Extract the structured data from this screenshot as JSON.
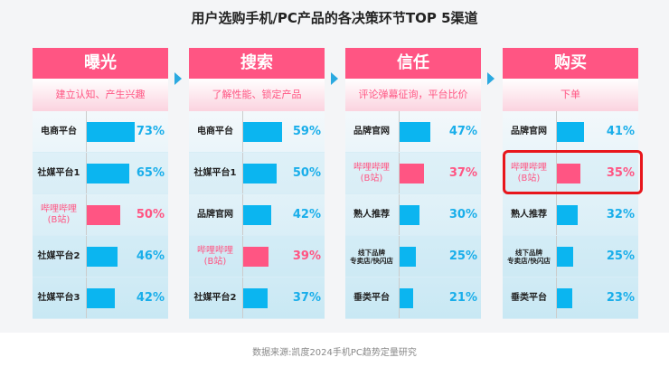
{
  "chart_data": {
    "type": "bar",
    "title": "用户选购手机/PC产品的各决策环节TOP 5渠道",
    "source": "数据来源:凯度2024手机PC趋势定量研究",
    "highlight_color": "#ff5583",
    "bar_color": "#0bb5f0",
    "highlight_box_color": "#e8161c",
    "panels": [
      {
        "stage": "曝光",
        "subtitle": "建立认知、产生兴趣",
        "items": [
          {
            "label": "电商平台",
            "value": 73
          },
          {
            "label": "社媒平台1",
            "value": 65
          },
          {
            "label": "哔哩哔哩\n(B站)",
            "value": 50,
            "highlight": true
          },
          {
            "label": "社媒平台2",
            "value": 46
          },
          {
            "label": "社媒平台3",
            "value": 42
          }
        ]
      },
      {
        "stage": "搜索",
        "subtitle": "了解性能、锁定产品",
        "items": [
          {
            "label": "电商平台",
            "value": 59
          },
          {
            "label": "社媒平台1",
            "value": 50
          },
          {
            "label": "品牌官网",
            "value": 42
          },
          {
            "label": "哔哩哔哩\n(B站)",
            "value": 39,
            "highlight": true
          },
          {
            "label": "社媒平台2",
            "value": 37
          }
        ]
      },
      {
        "stage": "信任",
        "subtitle": "评论弹幕征询，平台比价",
        "items": [
          {
            "label": "品牌官网",
            "value": 47
          },
          {
            "label": "哔哩哔哩\n(B站)",
            "value": 37,
            "highlight": true
          },
          {
            "label": "熟人推荐",
            "value": 30
          },
          {
            "label": "线下品牌\n专卖店/快闪店",
            "value": 25,
            "small": true
          },
          {
            "label": "垂类平台",
            "value": 21
          }
        ]
      },
      {
        "stage": "购买",
        "subtitle": "下单",
        "items": [
          {
            "label": "品牌官网",
            "value": 41
          },
          {
            "label": "哔哩哔哩\n(B站)",
            "value": 35,
            "highlight": true,
            "boxed": true
          },
          {
            "label": "熟人推荐",
            "value": 32
          },
          {
            "label": "线下品牌\n专卖店/快闪店",
            "value": 25,
            "small": true
          },
          {
            "label": "垂类平台",
            "value": 23
          }
        ]
      }
    ]
  }
}
